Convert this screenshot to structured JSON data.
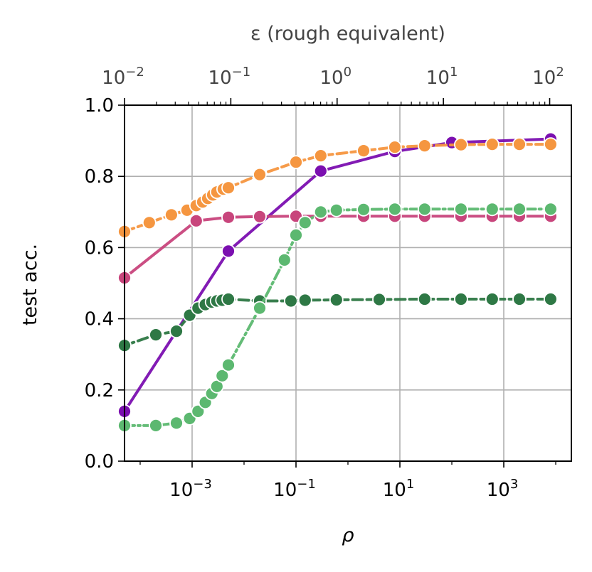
{
  "chart_data": {
    "type": "line",
    "xlabel": "ρ",
    "ylabel": "test acc.",
    "top_xlabel": "ε (rough equivalent)",
    "xscale": "log",
    "top_xscale": "log",
    "xlim": [
      5e-05,
      20000
    ],
    "top_xlim": [
      0.01,
      160
    ],
    "ylim": [
      0.0,
      1.0
    ],
    "grid": true,
    "x_ticks": [
      {
        "value": 0.001,
        "base": "10",
        "exp": "−3"
      },
      {
        "value": 0.1,
        "base": "10",
        "exp": "−1"
      },
      {
        "value": 10,
        "base": "10",
        "exp": "1"
      },
      {
        "value": 1000,
        "base": "10",
        "exp": "3"
      }
    ],
    "top_ticks": [
      {
        "value": 0.01,
        "base": "10",
        "exp": "−2"
      },
      {
        "value": 0.1,
        "base": "10",
        "exp": "−1"
      },
      {
        "value": 1,
        "base": "10",
        "exp": "0"
      },
      {
        "value": 10,
        "base": "10",
        "exp": "1"
      },
      {
        "value": 100,
        "base": "10",
        "exp": "2"
      }
    ],
    "y_ticks": [
      {
        "value": 0.0,
        "label": "0.0"
      },
      {
        "value": 0.2,
        "label": "0.2"
      },
      {
        "value": 0.4,
        "label": "0.4"
      },
      {
        "value": 0.6,
        "label": "0.6"
      },
      {
        "value": 0.8,
        "label": "0.8"
      },
      {
        "value": 1.0,
        "label": "1.0"
      }
    ],
    "series": [
      {
        "color": "#7b0fb0",
        "dash": "solid",
        "x": [
          5e-05,
          0.005,
          0.3,
          8,
          100,
          8000
        ],
        "y": [
          0.14,
          0.59,
          0.815,
          0.87,
          0.895,
          0.905
        ]
      },
      {
        "color": "#c8457c",
        "dash": "solid",
        "x": [
          5e-05,
          0.0012,
          0.005,
          0.02,
          0.1,
          0.3,
          2,
          8,
          30,
          150,
          600,
          2000,
          8000
        ],
        "y": [
          0.515,
          0.675,
          0.685,
          0.687,
          0.688,
          0.688,
          0.688,
          0.688,
          0.688,
          0.688,
          0.688,
          0.688,
          0.688
        ]
      },
      {
        "color": "#f59640",
        "dash": "dashed",
        "x": [
          5e-05,
          0.00015,
          0.0004,
          0.0008,
          0.0012,
          0.0016,
          0.002,
          0.0025,
          0.003,
          0.004,
          0.005,
          0.02,
          0.1,
          0.3,
          2,
          8,
          30,
          150,
          600,
          2000,
          8000
        ],
        "y": [
          0.645,
          0.67,
          0.692,
          0.705,
          0.718,
          0.728,
          0.738,
          0.748,
          0.756,
          0.764,
          0.768,
          0.805,
          0.84,
          0.858,
          0.872,
          0.882,
          0.886,
          0.889,
          0.89,
          0.89,
          0.89
        ]
      },
      {
        "color": "#2e7845",
        "dash": "dashed",
        "x": [
          5e-05,
          0.0002,
          0.0005,
          0.0009,
          0.0013,
          0.0018,
          0.0024,
          0.003,
          0.0038,
          0.005,
          0.02,
          0.08,
          0.15,
          0.6,
          4,
          30,
          150,
          600,
          2000,
          8000
        ],
        "y": [
          0.325,
          0.355,
          0.365,
          0.41,
          0.43,
          0.44,
          0.447,
          0.45,
          0.452,
          0.455,
          0.45,
          0.45,
          0.452,
          0.453,
          0.454,
          0.455,
          0.455,
          0.455,
          0.455,
          0.455
        ]
      },
      {
        "color": "#5cb870",
        "dash": "dashdot",
        "x": [
          5e-05,
          0.0002,
          0.0005,
          0.0009,
          0.0013,
          0.0018,
          0.0024,
          0.003,
          0.0038,
          0.005,
          0.02,
          0.06,
          0.1,
          0.15,
          0.3,
          0.6,
          2,
          8,
          30,
          150,
          600,
          2000,
          8000
        ],
        "y": [
          0.1,
          0.1,
          0.107,
          0.12,
          0.14,
          0.165,
          0.19,
          0.21,
          0.24,
          0.27,
          0.43,
          0.565,
          0.635,
          0.67,
          0.7,
          0.705,
          0.707,
          0.708,
          0.708,
          0.708,
          0.708,
          0.708,
          0.708
        ]
      }
    ]
  }
}
